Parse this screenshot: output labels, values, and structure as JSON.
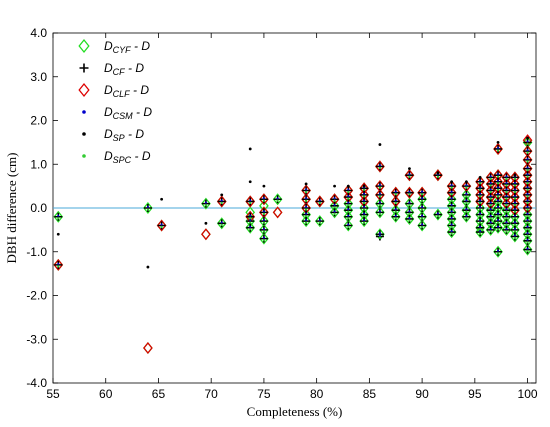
{
  "chart_data": {
    "type": "scatter",
    "xlabel": "Completeness (%)",
    "ylabel": "DBH difference (cm)",
    "xlim": [
      55,
      100.8
    ],
    "ylim": [
      -4,
      4
    ],
    "xticks": [
      "55",
      "60",
      "65",
      "70",
      "75",
      "80",
      "85",
      "90",
      "95",
      "100"
    ],
    "yticks": [
      "4.0",
      "3.0",
      "2.0",
      "1.0",
      "0.0",
      "-1.0",
      "-2.0",
      "-3.0",
      "-4.0"
    ],
    "reference_line": {
      "y": 0,
      "color": "#4aa8d8"
    },
    "legend": {
      "position": "top-left",
      "entries": [
        {
          "main": "D",
          "sub": "CYF",
          "tail": " - D",
          "marker": "diamond",
          "color": "#22dd22"
        },
        {
          "main": "D",
          "sub": "CF",
          "tail": " - D",
          "marker": "plus",
          "color": "#000000"
        },
        {
          "main": "D",
          "sub": "CLF",
          "tail": " - D",
          "marker": "diamond",
          "color": "#dd0000"
        },
        {
          "main": "D",
          "sub": "CSM",
          "tail": " - D",
          "marker": "dot",
          "color": "#0000cc"
        },
        {
          "main": "D",
          "sub": "SP",
          "tail": " - D",
          "marker": "dot",
          "color": "#000000"
        },
        {
          "main": "D",
          "sub": "SPC",
          "tail": " - D",
          "marker": "dot",
          "color": "#33cc33"
        }
      ]
    },
    "groups": [
      {
        "x": 55.5,
        "cyf": [
          -0.2,
          -1.3
        ],
        "cf": [
          -0.2,
          -1.3
        ],
        "clf": [
          -1.3
        ],
        "sp": [
          -0.6
        ]
      },
      {
        "x": 64.0,
        "cyf": [
          0.0,
          -3.2
        ],
        "cf": [
          0.0
        ],
        "clf": [
          -3.2
        ],
        "sp": [
          -1.35
        ]
      },
      {
        "x": 65.3,
        "cyf": [
          -0.4
        ],
        "cf": [
          -0.4
        ],
        "clf": [
          -0.4
        ],
        "sp": [
          0.2
        ]
      },
      {
        "x": 69.5,
        "cyf": [
          0.1,
          -0.6
        ],
        "cf": [
          0.1
        ],
        "clf": [
          -0.6
        ],
        "sp": [
          -0.35
        ]
      },
      {
        "x": 71.0,
        "cyf": [
          0.15,
          -0.35
        ],
        "cf": [
          0.15,
          -0.35
        ],
        "clf": [
          0.15
        ],
        "sp": [
          0.3
        ]
      },
      {
        "x": 73.7,
        "cyf": [
          0.15,
          -0.1,
          -0.2,
          -0.3,
          -0.45
        ],
        "cf": [
          0.15,
          -0.2,
          -0.3,
          -0.45
        ],
        "clf": [
          0.15,
          -0.2
        ],
        "sp": [
          1.35,
          0.6
        ]
      },
      {
        "x": 75.0,
        "cyf": [
          0.2,
          0.05,
          -0.1,
          -0.3,
          -0.5,
          -0.7
        ],
        "cf": [
          0.2,
          -0.1,
          -0.3,
          -0.5,
          -0.7
        ],
        "clf": [
          0.2,
          -0.1
        ],
        "sp": [
          0.5
        ]
      },
      {
        "x": 76.3,
        "cyf": [
          0.2,
          -0.1
        ],
        "cf": [
          0.2
        ],
        "clf": [
          -0.1
        ],
        "sp": []
      },
      {
        "x": 79.0,
        "cyf": [
          0.4,
          0.2,
          0.0,
          -0.15,
          -0.3
        ],
        "cf": [
          0.4,
          0.2,
          0.0,
          -0.15,
          -0.3
        ],
        "clf": [
          0.4,
          0.2,
          0.0
        ],
        "sp": [
          0.55
        ]
      },
      {
        "x": 80.3,
        "cyf": [
          0.15,
          -0.3
        ],
        "cf": [
          0.15,
          -0.3
        ],
        "clf": [
          0.15
        ],
        "sp": []
      },
      {
        "x": 81.7,
        "cyf": [
          0.2,
          0.05,
          -0.1
        ],
        "cf": [
          0.2,
          0.05,
          -0.1
        ],
        "clf": [
          0.2
        ],
        "sp": [
          0.5
        ]
      },
      {
        "x": 83.0,
        "cyf": [
          0.4,
          0.25,
          0.1,
          -0.05,
          -0.2,
          -0.4
        ],
        "cf": [
          0.4,
          0.25,
          0.1,
          -0.05,
          -0.2,
          -0.4
        ],
        "clf": [
          0.4,
          0.25
        ],
        "sp": [
          0.5
        ]
      },
      {
        "x": 84.5,
        "cyf": [
          0.45,
          0.3,
          0.15,
          0.0,
          -0.15,
          -0.3
        ],
        "cf": [
          0.45,
          0.3,
          0.15,
          0.0,
          -0.15,
          -0.3
        ],
        "clf": [
          0.45,
          0.3,
          0.15
        ],
        "sp": [
          0.5
        ]
      },
      {
        "x": 86.0,
        "cyf": [
          0.95,
          0.5,
          0.3,
          0.1,
          -0.1,
          -0.6
        ],
        "cf": [
          0.95,
          0.5,
          0.3,
          0.1,
          -0.1,
          -0.6,
          -0.65
        ],
        "clf": [
          0.95,
          0.5,
          0.3
        ],
        "sp": [
          1.45
        ]
      },
      {
        "x": 87.5,
        "cyf": [
          0.35,
          0.15,
          -0.05,
          -0.2
        ],
        "cf": [
          0.35,
          0.15,
          -0.05,
          -0.2
        ],
        "clf": [
          0.35,
          0.15
        ],
        "sp": []
      },
      {
        "x": 88.8,
        "cyf": [
          0.75,
          0.35,
          0.1,
          -0.1,
          -0.25
        ],
        "cf": [
          0.75,
          0.35,
          0.1,
          -0.1,
          -0.25
        ],
        "clf": [
          0.75,
          0.35
        ],
        "sp": [
          0.9
        ]
      },
      {
        "x": 90.0,
        "cyf": [
          0.35,
          0.2,
          0.0,
          -0.2,
          -0.4
        ],
        "cf": [
          0.35,
          0.2,
          0.0,
          -0.2,
          -0.4
        ],
        "clf": [
          0.35
        ],
        "sp": []
      },
      {
        "x": 91.5,
        "cyf": [
          0.75,
          -0.15
        ],
        "cf": [
          0.75,
          -0.15
        ],
        "clf": [
          0.75
        ],
        "sp": [
          0.8
        ]
      },
      {
        "x": 92.8,
        "cyf": [
          0.5,
          0.35,
          0.2,
          0.05,
          -0.1,
          -0.25,
          -0.4,
          -0.55
        ],
        "cf": [
          0.5,
          0.35,
          0.2,
          0.05,
          -0.1,
          -0.25,
          -0.4,
          -0.55
        ],
        "clf": [
          0.5,
          0.35
        ],
        "sp": [
          0.6
        ]
      },
      {
        "x": 94.2,
        "cyf": [
          0.5,
          0.3,
          0.15,
          -0.05,
          -0.2
        ],
        "cf": [
          0.5,
          0.3,
          0.15,
          -0.05,
          -0.2
        ],
        "clf": [
          0.5
        ],
        "sp": [
          0.6
        ]
      },
      {
        "x": 95.5,
        "cyf": [
          0.6,
          0.45,
          0.3,
          0.15,
          0.0,
          -0.15,
          -0.3,
          -0.45,
          -0.55
        ],
        "cf": [
          0.6,
          0.45,
          0.3,
          0.15,
          0.0,
          -0.15,
          -0.3,
          -0.45,
          -0.55
        ],
        "clf": [
          0.6,
          0.45,
          0.3,
          0.15
        ],
        "sp": [
          0.7
        ]
      },
      {
        "x": 96.5,
        "cyf": [
          0.7,
          0.55,
          0.4,
          0.25,
          0.1,
          -0.05,
          -0.2,
          -0.35,
          -0.5
        ],
        "cf": [
          0.7,
          0.55,
          0.4,
          0.25,
          0.1,
          -0.05,
          -0.2,
          -0.35,
          -0.5
        ],
        "clf": [
          0.7,
          0.55,
          0.4,
          0.25,
          0.1
        ],
        "sp": []
      },
      {
        "x": 97.2,
        "cyf": [
          1.35,
          0.75,
          0.6,
          0.45,
          0.3,
          0.15,
          0.0,
          -0.15,
          -0.3,
          -0.45,
          -1.0
        ],
        "cf": [
          1.35,
          0.75,
          0.6,
          0.45,
          0.3,
          0.15,
          0.0,
          -0.15,
          -0.3,
          -0.45,
          -1.0
        ],
        "clf": [
          1.35,
          0.75,
          0.6,
          0.45,
          0.3
        ],
        "sp": [
          1.5
        ]
      },
      {
        "x": 98.0,
        "cyf": [
          0.7,
          0.55,
          0.4,
          0.25,
          0.1,
          -0.05,
          -0.2,
          -0.35,
          -0.5
        ],
        "cf": [
          0.7,
          0.55,
          0.4,
          0.25,
          0.1,
          -0.05,
          -0.2,
          -0.35,
          -0.5
        ],
        "clf": [
          0.7,
          0.55,
          0.4,
          0.25,
          0.1
        ],
        "sp": []
      },
      {
        "x": 98.8,
        "cyf": [
          0.7,
          0.55,
          0.4,
          0.25,
          0.1,
          -0.05,
          -0.2,
          -0.35,
          -0.5,
          -0.65
        ],
        "cf": [
          0.7,
          0.55,
          0.4,
          0.25,
          0.1,
          -0.05,
          -0.2,
          -0.35,
          -0.5,
          -0.65
        ],
        "clf": [
          0.7,
          0.55,
          0.4,
          0.25,
          0.1,
          -0.05
        ],
        "sp": [
          0.75
        ]
      },
      {
        "x": 100.0,
        "cyf": [
          1.5,
          1.3,
          1.1,
          0.9,
          0.75,
          0.6,
          0.45,
          0.3,
          0.15,
          0.0,
          -0.15,
          -0.3,
          -0.45,
          -0.6,
          -0.75,
          -0.95
        ],
        "cf": [
          1.5,
          1.3,
          1.1,
          0.9,
          0.75,
          0.6,
          0.45,
          0.3,
          0.15,
          0.0,
          -0.15,
          -0.3,
          -0.45,
          -0.6,
          -0.75,
          -0.95
        ],
        "clf": [
          1.55,
          1.3,
          1.1,
          0.9,
          0.75,
          0.6,
          0.45,
          0.3,
          0.15,
          0.0
        ],
        "sp": [
          1.6
        ]
      }
    ]
  }
}
